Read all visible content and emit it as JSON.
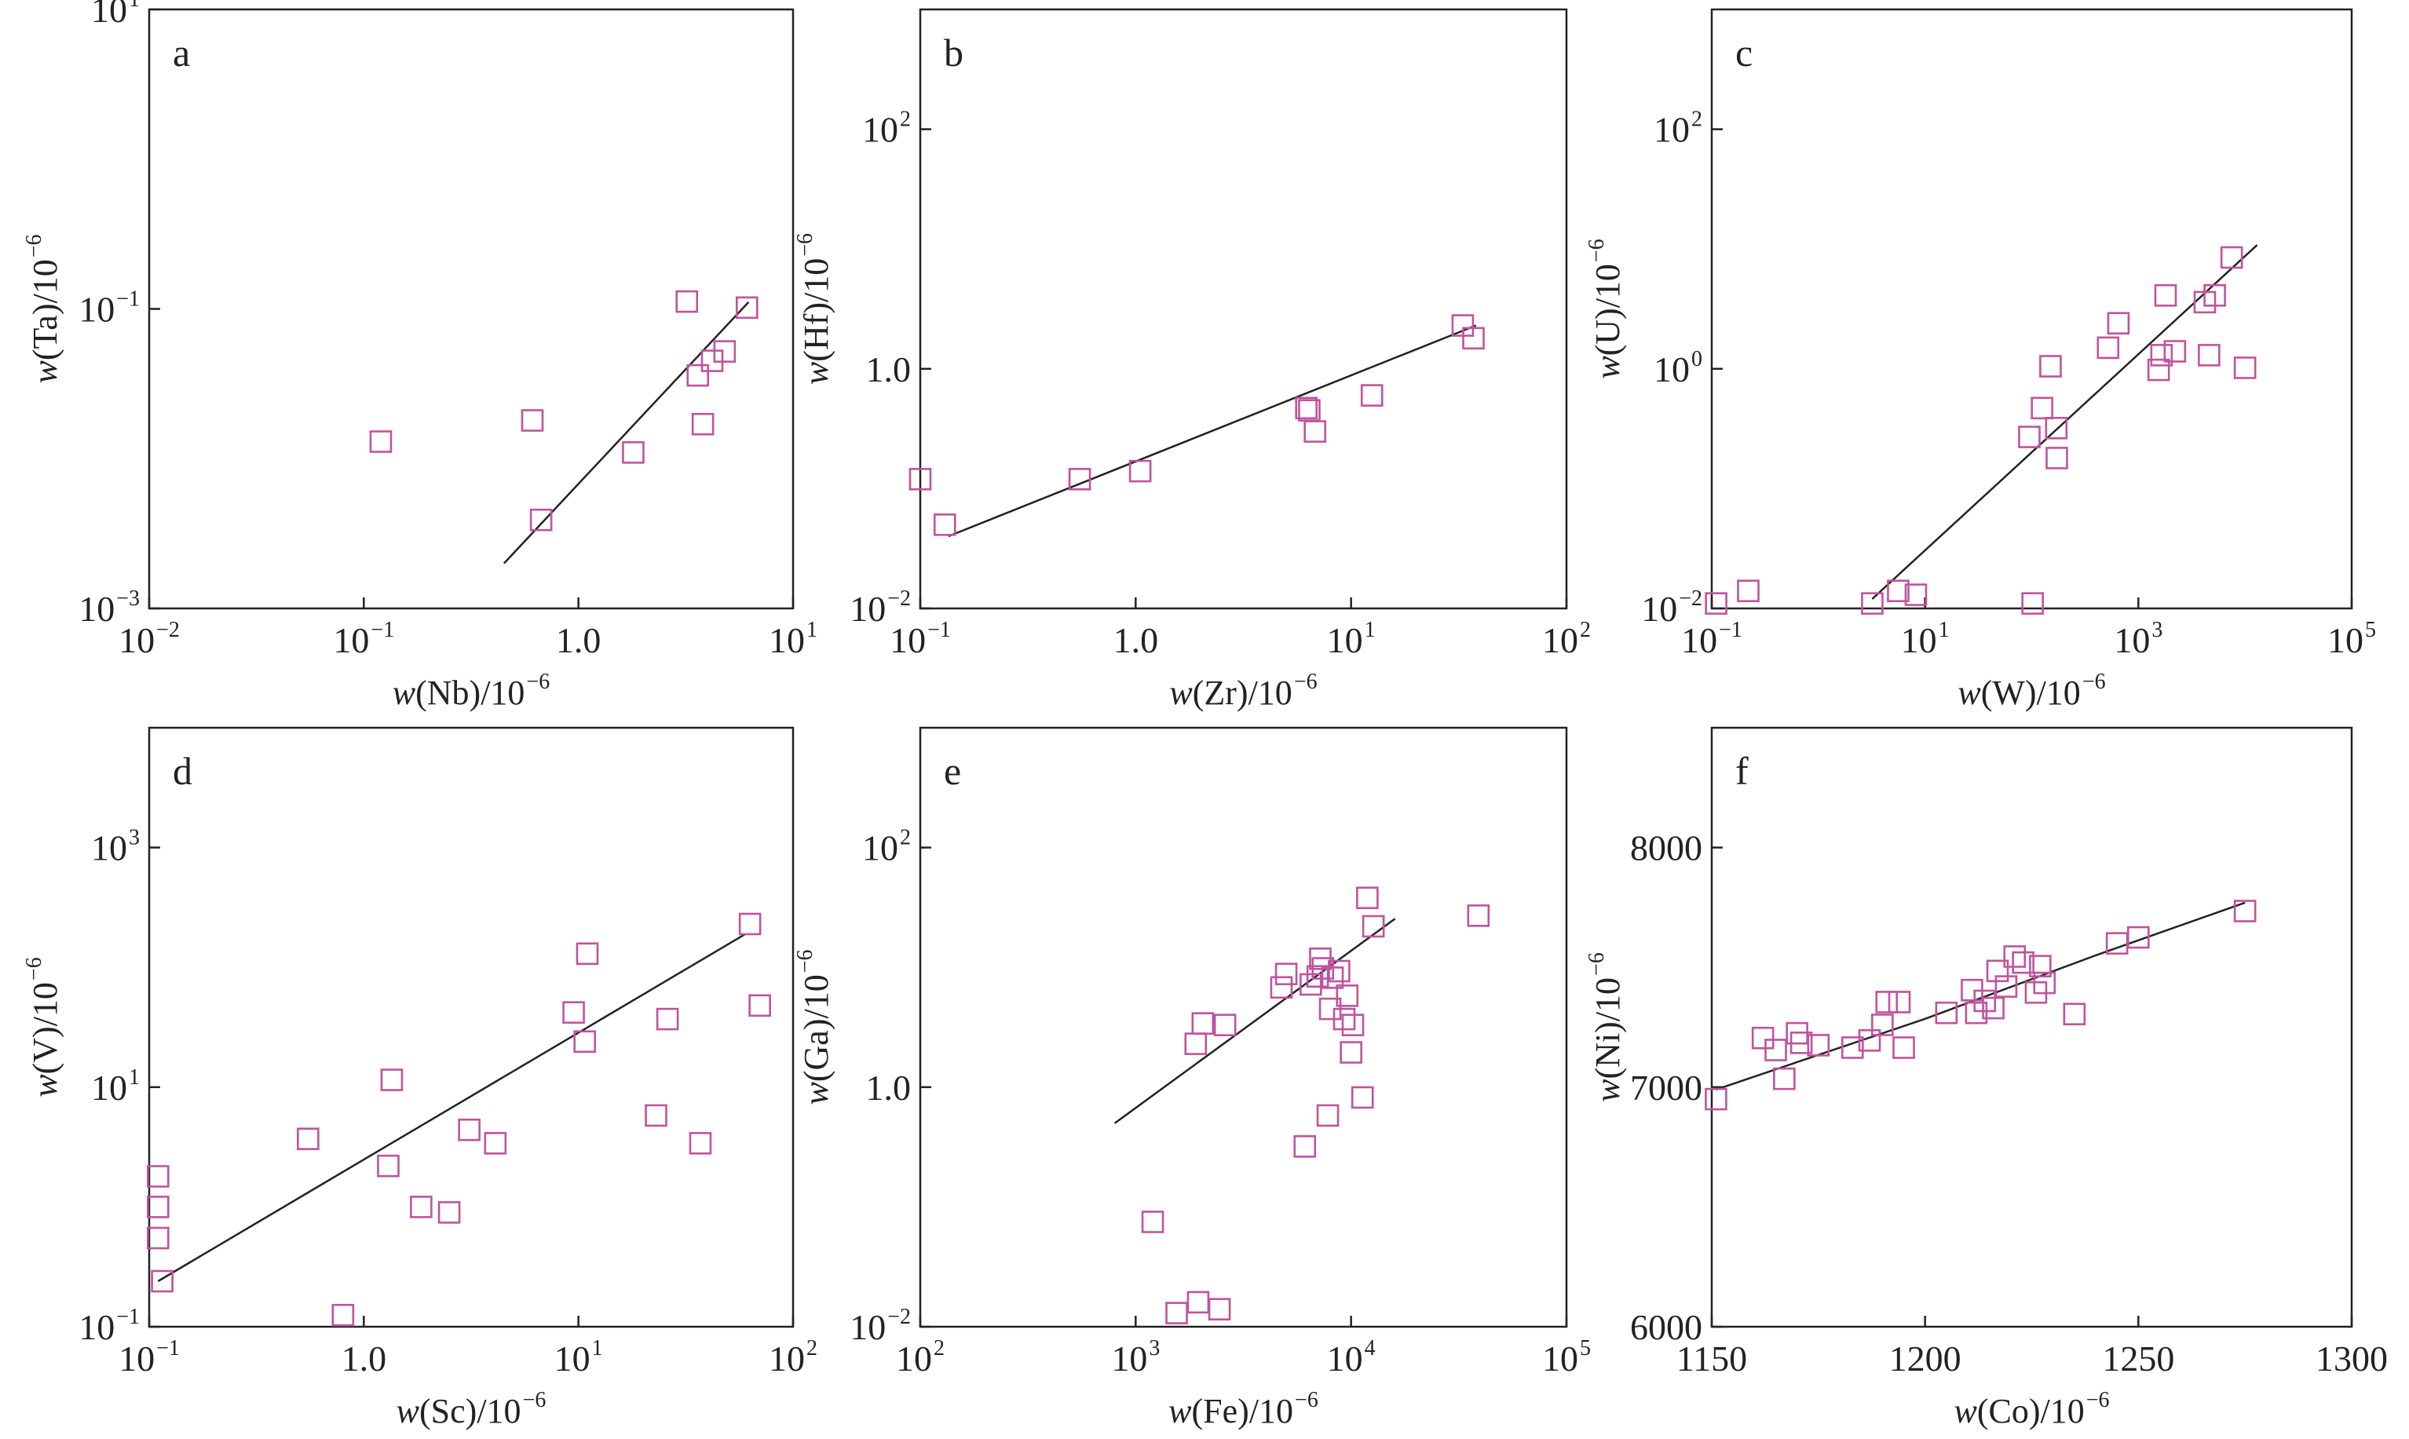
{
  "figure": {
    "marker_color": "#c0539e",
    "line_color": "#222222"
  },
  "chart_data": [
    {
      "type": "scatter",
      "panel": "a",
      "xlabel": {
        "w": "w",
        "el": "(Nb)/10",
        "exp": "−6"
      },
      "ylabel": {
        "w": "w",
        "el": "(Ta)/10",
        "exp": "−6"
      },
      "xscale": "log",
      "yscale": "log",
      "xlim": [
        0.01,
        10
      ],
      "ylim": [
        0.001,
        10
      ],
      "x_ticks": [
        {
          "base": "10",
          "exp": "−2"
        },
        {
          "base": "10",
          "exp": "−1"
        },
        {
          "base": "1.0",
          "exp": ""
        },
        {
          "base": "10",
          "exp": "1"
        }
      ],
      "y_ticks": [
        {
          "base": "10",
          "exp": "−3"
        },
        {
          "base": "10",
          "exp": "−1"
        },
        {
          "base": "10",
          "exp": "1"
        }
      ],
      "y_tick_values": [
        0.001,
        0.1,
        10
      ],
      "points": [
        [
          0.12,
          0.013
        ],
        [
          0.61,
          0.018
        ],
        [
          0.67,
          0.0039
        ],
        [
          1.8,
          0.011
        ],
        [
          3.2,
          0.112
        ],
        [
          3.6,
          0.036
        ],
        [
          3.8,
          0.017
        ],
        [
          4.2,
          0.045
        ],
        [
          4.8,
          0.052
        ],
        [
          6.1,
          0.102
        ]
      ],
      "fit_line": [
        [
          0.45,
          0.002
        ],
        [
          6.2,
          0.111
        ]
      ]
    },
    {
      "type": "scatter",
      "panel": "b",
      "xlabel": {
        "w": "w",
        "el": "(Zr)/10",
        "exp": "−6"
      },
      "ylabel": {
        "w": "w",
        "el": "(Hf)/10",
        "exp": "−6"
      },
      "xscale": "log",
      "yscale": "log",
      "xlim": [
        0.1,
        100
      ],
      "ylim": [
        0.01,
        1000
      ],
      "x_ticks": [
        {
          "base": "10",
          "exp": "−1"
        },
        {
          "base": "1.0",
          "exp": ""
        },
        {
          "base": "10",
          "exp": "1"
        },
        {
          "base": "10",
          "exp": "2"
        }
      ],
      "y_ticks": [
        {
          "base": "10",
          "exp": "−2"
        },
        {
          "base": "1.0",
          "exp": ""
        },
        {
          "base": "10",
          "exp": "2"
        }
      ],
      "y_tick_values": [
        0.01,
        1,
        100
      ],
      "points": [
        [
          0.1,
          0.12
        ],
        [
          0.13,
          0.05
        ],
        [
          0.55,
          0.12
        ],
        [
          1.05,
          0.14
        ],
        [
          6.2,
          0.47
        ],
        [
          6.4,
          0.45
        ],
        [
          6.8,
          0.3
        ],
        [
          12.5,
          0.6
        ],
        [
          33,
          2.3
        ],
        [
          37,
          1.8
        ]
      ],
      "fit_line": [
        [
          0.135,
          0.04
        ],
        [
          38,
          2.3
        ]
      ]
    },
    {
      "type": "scatter",
      "panel": "c",
      "xlabel": {
        "w": "w",
        "el": "(W)/10",
        "exp": "−6"
      },
      "ylabel": {
        "w": "w",
        "el": "(U)/10",
        "exp": "−6"
      },
      "xscale": "log",
      "yscale": "log",
      "xlim": [
        0.1,
        100000
      ],
      "ylim": [
        0.01,
        1000
      ],
      "x_ticks": [
        {
          "base": "10",
          "exp": "−1"
        },
        {
          "base": "10",
          "exp": "1"
        },
        {
          "base": "10",
          "exp": "3"
        },
        {
          "base": "10",
          "exp": "5"
        }
      ],
      "y_ticks": [
        {
          "base": "10",
          "exp": "−2"
        },
        {
          "base": "10",
          "exp": "0"
        },
        {
          "base": "10",
          "exp": "2"
        }
      ],
      "y_tick_values": [
        0.01,
        1,
        100
      ],
      "points": [
        [
          0.11,
          0.011
        ],
        [
          0.22,
          0.014
        ],
        [
          3.2,
          0.011
        ],
        [
          5.6,
          0.014
        ],
        [
          8.2,
          0.013
        ],
        [
          102,
          0.011
        ],
        [
          95,
          0.27
        ],
        [
          125,
          0.47
        ],
        [
          150,
          1.05
        ],
        [
          170,
          0.32
        ],
        [
          172,
          0.18
        ],
        [
          520,
          1.5
        ],
        [
          650,
          2.4
        ],
        [
          1550,
          0.98
        ],
        [
          1650,
          1.3
        ],
        [
          1800,
          4.1
        ],
        [
          2200,
          1.4
        ],
        [
          4200,
          3.6
        ],
        [
          4600,
          1.3
        ],
        [
          5200,
          4.1
        ],
        [
          7500,
          8.5
        ],
        [
          10000,
          1.02
        ]
      ],
      "fit_line": [
        [
          3.2,
          0.012
        ],
        [
          13000,
          10.8
        ]
      ]
    },
    {
      "type": "scatter",
      "panel": "d",
      "xlabel": {
        "w": "w",
        "el": "(Sc)/10",
        "exp": "−6"
      },
      "ylabel": {
        "w": "w",
        "el": "(V)/10",
        "exp": "−6"
      },
      "xscale": "log",
      "yscale": "log",
      "xlim": [
        0.1,
        100
      ],
      "ylim": [
        0.1,
        10000
      ],
      "x_ticks": [
        {
          "base": "10",
          "exp": "−1"
        },
        {
          "base": "1.0",
          "exp": ""
        },
        {
          "base": "10",
          "exp": "1"
        },
        {
          "base": "10",
          "exp": "2"
        }
      ],
      "y_ticks": [
        {
          "base": "10",
          "exp": "−1"
        },
        {
          "base": "10",
          "exp": "1"
        },
        {
          "base": "10",
          "exp": "3"
        }
      ],
      "y_tick_values": [
        0.1,
        10,
        1000
      ],
      "points": [
        [
          0.11,
          1.8
        ],
        [
          0.11,
          1.0
        ],
        [
          0.11,
          0.55
        ],
        [
          0.115,
          0.24
        ],
        [
          0.8,
          0.125
        ],
        [
          0.55,
          3.7
        ],
        [
          1.3,
          2.2
        ],
        [
          1.35,
          11.5
        ],
        [
          1.85,
          1.0
        ],
        [
          2.5,
          0.9
        ],
        [
          3.1,
          4.4
        ],
        [
          4.1,
          3.4
        ],
        [
          9.5,
          42
        ],
        [
          10.7,
          24
        ],
        [
          11,
          130
        ],
        [
          23,
          5.8
        ],
        [
          26,
          37
        ],
        [
          37,
          3.4
        ],
        [
          63,
          230
        ],
        [
          70,
          48
        ]
      ],
      "fit_line": [
        [
          0.11,
          0.24
        ],
        [
          60,
          190
        ]
      ]
    },
    {
      "type": "scatter",
      "panel": "e",
      "xlabel": {
        "w": "w",
        "el": "(Fe)/10",
        "exp": "−6"
      },
      "ylabel": {
        "w": "w",
        "el": "(Ga)/10",
        "exp": "−6"
      },
      "xscale": "log",
      "yscale": "log",
      "xlim": [
        100,
        100000
      ],
      "ylim": [
        0.01,
        1000
      ],
      "x_ticks": [
        {
          "base": "10",
          "exp": "2"
        },
        {
          "base": "10",
          "exp": "3"
        },
        {
          "base": "10",
          "exp": "4"
        },
        {
          "base": "10",
          "exp": "5"
        }
      ],
      "y_ticks": [
        {
          "base": "10",
          "exp": "−2"
        },
        {
          "base": "1.0",
          "exp": ""
        },
        {
          "base": "10",
          "exp": "2"
        }
      ],
      "y_tick_values": [
        0.01,
        1,
        100
      ],
      "points": [
        [
          1200,
          0.075
        ],
        [
          1550,
          0.013
        ],
        [
          1950,
          0.016
        ],
        [
          2450,
          0.014
        ],
        [
          1900,
          2.3
        ],
        [
          2050,
          3.4
        ],
        [
          2600,
          3.3
        ],
        [
          4750,
          6.8
        ],
        [
          5000,
          8.8
        ],
        [
          6100,
          0.32
        ],
        [
          6500,
          7.2
        ],
        [
          7000,
          8.4
        ],
        [
          7200,
          11.8
        ],
        [
          7400,
          9.8
        ],
        [
          7800,
          0.58
        ],
        [
          8000,
          4.5
        ],
        [
          8200,
          8.2
        ],
        [
          8800,
          9.3
        ],
        [
          9300,
          3.7
        ],
        [
          9600,
          5.8
        ],
        [
          10000,
          1.95
        ],
        [
          10200,
          3.3
        ],
        [
          11300,
          0.82
        ],
        [
          11900,
          38
        ],
        [
          12700,
          22
        ],
        [
          39000,
          27
        ]
      ],
      "fit_line": [
        [
          800,
          0.5
        ],
        [
          16000,
          25.5
        ]
      ]
    },
    {
      "type": "scatter",
      "panel": "f",
      "xlabel": {
        "w": "w",
        "el": "(Co)/10",
        "exp": "−6"
      },
      "ylabel": {
        "w": "w",
        "el": "(Ni)/10",
        "exp": "−6"
      },
      "xscale": "linear",
      "yscale": "linear",
      "xlim": [
        1150,
        1300
      ],
      "ylim": [
        6000,
        8500
      ],
      "x_ticks": [
        {
          "base": "1150",
          "exp": ""
        },
        {
          "base": "1200",
          "exp": ""
        },
        {
          "base": "1250",
          "exp": ""
        },
        {
          "base": "1300",
          "exp": ""
        }
      ],
      "y_ticks": [
        {
          "base": "6000",
          "exp": ""
        },
        {
          "base": "7000",
          "exp": ""
        },
        {
          "base": "8000",
          "exp": ""
        }
      ],
      "y_tick_values": [
        6000,
        7000,
        8000
      ],
      "points": [
        [
          1151,
          6950
        ],
        [
          1162,
          7205
        ],
        [
          1165,
          7155
        ],
        [
          1167,
          7035
        ],
        [
          1170,
          7225
        ],
        [
          1171,
          7185
        ],
        [
          1175,
          7175
        ],
        [
          1183,
          7165
        ],
        [
          1187,
          7195
        ],
        [
          1190,
          7260
        ],
        [
          1191,
          7355
        ],
        [
          1194,
          7355
        ],
        [
          1195,
          7165
        ],
        [
          1205,
          7310
        ],
        [
          1211,
          7405
        ],
        [
          1212,
          7310
        ],
        [
          1214,
          7360
        ],
        [
          1216,
          7330
        ],
        [
          1217,
          7485
        ],
        [
          1219,
          7420
        ],
        [
          1221,
          7545
        ],
        [
          1223,
          7520
        ],
        [
          1226,
          7395
        ],
        [
          1227,
          7505
        ],
        [
          1228,
          7435
        ],
        [
          1235,
          7305
        ],
        [
          1245,
          7600
        ],
        [
          1250,
          7625
        ],
        [
          1275,
          7735
        ]
      ],
      "fit_line": [
        [
          1151,
          6990
        ],
        [
          1200,
          7285
        ],
        [
          1240,
          7550
        ],
        [
          1275,
          7770
        ]
      ]
    }
  ]
}
